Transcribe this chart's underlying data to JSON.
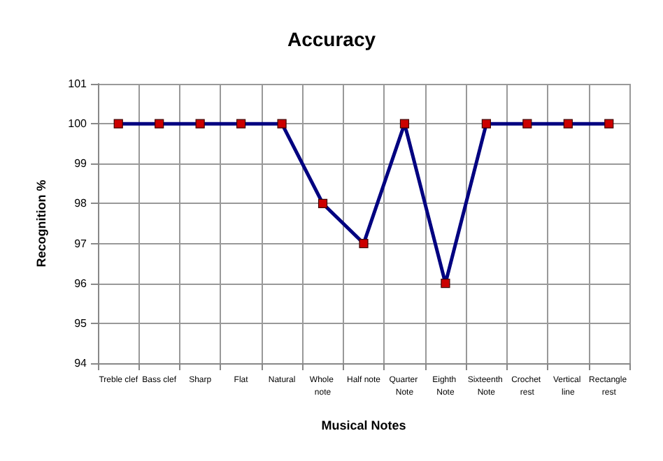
{
  "chart_data": {
    "type": "line",
    "title": "Accuracy",
    "xlabel": "Musical Notes",
    "ylabel": "Recognition %",
    "categories": [
      "Treble clef",
      "Bass clef",
      "Sharp",
      "Flat",
      "Natural",
      "Whole note",
      "Half note",
      "Quarter Note",
      "Eighth Note",
      "Sixteenth Note",
      "Crochet rest",
      "Vertical line",
      "Rectangle rest"
    ],
    "series": [
      {
        "color": "#000080",
        "colors": [
          "#cc0000",
          "#cc0000",
          "#cc0000",
          "#cc0000",
          "#cc0000",
          "#cc0000",
          "#cc0000",
          "#cc0000",
          "#cc0000",
          "#cc0000",
          "#cc0000",
          "#cc0000",
          "#cc0000"
        ],
        "values": [
          100,
          100,
          100,
          100,
          100,
          98,
          97,
          100,
          96,
          100,
          100,
          100,
          100
        ]
      }
    ],
    "ylim": [
      94,
      101
    ],
    "yticks": [
      94,
      95,
      96,
      97,
      98,
      99,
      100,
      101
    ],
    "grid": true,
    "marker": "square",
    "line_style": "solid"
  }
}
